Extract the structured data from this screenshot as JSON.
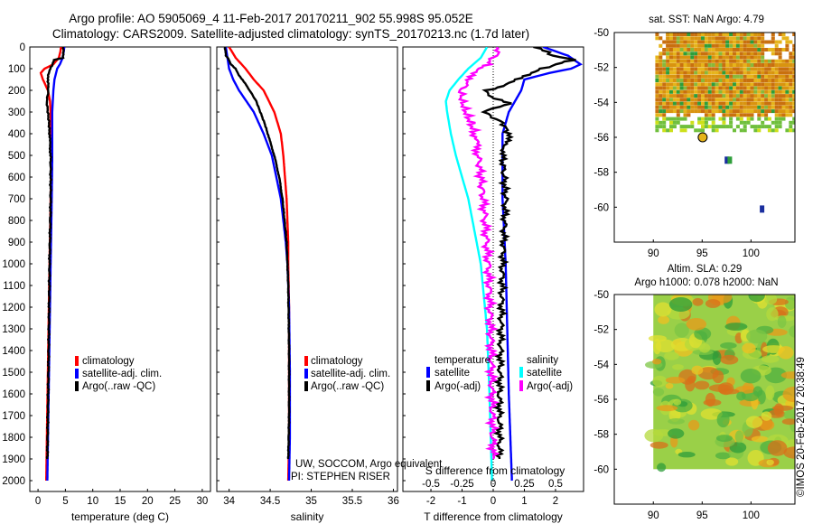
{
  "title": {
    "line1": "Argo profile: AO 5905069_4 11-Feb-2017 20170211_902 55.998S 95.052E",
    "line2": "Climatology: CARS2009. Satellite-adjusted climatology: synTS_20170213.nc (1.7d later)"
  },
  "colors": {
    "climatology": "#ff0000",
    "satellite": "#0000ff",
    "argo": "#000000",
    "sal_satellite": "#00ffff",
    "sal_argo": "#ff00ff"
  },
  "depth_axis": {
    "ylim": [
      2050,
      0
    ],
    "ticks": [
      0,
      100,
      200,
      300,
      400,
      500,
      600,
      700,
      800,
      900,
      1000,
      1100,
      1200,
      1300,
      1400,
      1500,
      1600,
      1700,
      1800,
      1900,
      2000
    ],
    "tick_labels": [
      "0",
      "100",
      "200",
      "300",
      "400",
      "500",
      "600",
      "700",
      "800",
      "900",
      "1000",
      "1100",
      "1200",
      "1300",
      "1400",
      "1500",
      "1600",
      "1700",
      "1800",
      "1900",
      "2000"
    ]
  },
  "chart_data": [
    {
      "id": "temperature-panel",
      "type": "line",
      "xlabel": "temperature (deg C)",
      "xlim": [
        -1.5,
        31.5
      ],
      "xticks": [
        0,
        5,
        10,
        15,
        20,
        25,
        30
      ],
      "xtick_labels": [
        "0",
        "5",
        "10",
        "15",
        "20",
        "25",
        "30"
      ],
      "legend": [
        "climatology",
        "satellite-adj. clim.",
        "Argo(..raw -QC)"
      ],
      "series": [
        {
          "name": "climatology",
          "depth": [
            0,
            20,
            50,
            80,
            100,
            120,
            150,
            200,
            250,
            300,
            400,
            500,
            700,
            1000,
            1500,
            2000
          ],
          "values": [
            4.2,
            4.1,
            3.8,
            2.8,
            1.2,
            0.5,
            0.9,
            1.8,
            2.2,
            2.3,
            2.4,
            2.4,
            2.3,
            2.1,
            1.8,
            1.5
          ]
        },
        {
          "name": "satellite-adj. clim.",
          "depth": [
            0,
            20,
            50,
            80,
            100,
            150,
            200,
            300,
            400,
            500,
            700,
            1000,
            1500,
            2000
          ],
          "values": [
            4.8,
            4.7,
            4.5,
            4.0,
            3.5,
            3.0,
            2.8,
            2.6,
            2.6,
            2.6,
            2.5,
            2.3,
            2.0,
            1.7
          ]
        },
        {
          "name": "Argo(..raw -QC)",
          "depth": [
            0,
            20,
            50,
            60,
            80,
            100,
            130,
            160,
            200,
            250,
            300,
            350,
            400,
            500,
            700,
            1000,
            1500,
            1900
          ],
          "values": [
            4.6,
            4.6,
            4.5,
            3.0,
            2.6,
            2.3,
            1.9,
            1.8,
            1.9,
            1.6,
            1.8,
            2.0,
            2.1,
            2.3,
            2.3,
            2.1,
            1.9,
            1.7
          ]
        }
      ]
    },
    {
      "id": "salinity-panel",
      "type": "line",
      "xlabel": "salinity",
      "xlim": [
        33.85,
        36.05
      ],
      "xticks": [
        34,
        34.5,
        35,
        35.5,
        36
      ],
      "xtick_labels": [
        "34",
        "34.5",
        "35",
        "35.5",
        "36"
      ],
      "legend": [
        "climatology",
        "satellite-adj. clim.",
        "Argo(..raw -QC)"
      ],
      "footer": [
        "UW, SOCCOM, Argo equivalent",
        "PI: STEPHEN RISER"
      ],
      "series": [
        {
          "name": "climatology",
          "depth": [
            0,
            50,
            100,
            150,
            200,
            300,
            400,
            500,
            700,
            900,
            1000,
            1200,
            1500,
            1800,
            2000
          ],
          "values": [
            34.0,
            34.08,
            34.2,
            34.3,
            34.42,
            34.55,
            34.63,
            34.66,
            34.7,
            34.72,
            34.72,
            34.73,
            34.73,
            34.73,
            34.72
          ]
        },
        {
          "name": "satellite-adj. clim.",
          "depth": [
            0,
            50,
            100,
            150,
            200,
            300,
            400,
            500,
            700,
            900,
            1000,
            1200,
            1500,
            1800,
            2000
          ],
          "values": [
            33.96,
            33.98,
            34.0,
            34.05,
            34.12,
            34.3,
            34.42,
            34.52,
            34.63,
            34.69,
            34.71,
            34.73,
            34.74,
            34.74,
            34.73
          ]
        },
        {
          "name": "Argo(..raw -QC)",
          "depth": [
            0,
            40,
            60,
            80,
            100,
            130,
            160,
            200,
            250,
            300,
            350,
            400,
            500,
            600,
            700,
            900,
            1100,
            1400,
            1700,
            1900
          ],
          "values": [
            33.95,
            33.96,
            34.0,
            34.02,
            34.08,
            34.12,
            34.18,
            34.25,
            34.33,
            34.38,
            34.43,
            34.47,
            34.55,
            34.61,
            34.65,
            34.7,
            34.72,
            34.73,
            34.73,
            34.72
          ]
        }
      ]
    },
    {
      "id": "difference-panel",
      "type": "line",
      "xlabel": "T difference from climatology",
      "xlabel2": "S difference from climatology",
      "xlim": [
        -2.9,
        2.9
      ],
      "xticks": [
        -2,
        -1,
        0,
        1,
        2
      ],
      "xtick_labels": [
        "-2",
        "-1",
        "0",
        "1",
        "2"
      ],
      "x2lim": [
        -0.725,
        0.725
      ],
      "x2ticks": [
        -0.5,
        -0.25,
        0,
        0.25,
        0.5
      ],
      "x2tick_labels": [
        "-0.5",
        "-0.25",
        "0",
        "0.25",
        "0.5"
      ],
      "legend_headers": [
        "temperature",
        "salinity"
      ],
      "legend_temperature": [
        "satellite",
        "Argo(-adj)"
      ],
      "legend_salinity": [
        "satellite",
        "Argo(-adj)"
      ],
      "series": [
        {
          "name": "T satellite",
          "depth": [
            0,
            40,
            80,
            100,
            120,
            150,
            200,
            250,
            300,
            400,
            500,
            700,
            1000,
            1300,
            1600,
            2000
          ],
          "values": [
            1.6,
            2.4,
            2.8,
            2.5,
            1.8,
            1.0,
            0.9,
            0.7,
            0.5,
            0.3,
            0.3,
            0.3,
            0.4,
            0.45,
            0.5,
            0.6
          ]
        },
        {
          "name": "T Argo(-adj)",
          "depth": [
            0,
            40,
            60,
            80,
            100,
            120,
            150,
            180,
            200,
            230,
            260,
            300,
            350,
            400,
            500,
            700,
            1000,
            1300,
            1600,
            1900
          ],
          "values": [
            1.4,
            1.9,
            2.6,
            2.0,
            1.6,
            1.2,
            0.7,
            0.3,
            -0.2,
            -0.1,
            0.5,
            -0.3,
            0.3,
            0.5,
            0.3,
            0.4,
            0.3,
            0.25,
            0.2,
            0.2
          ]
        },
        {
          "name": "S satellite",
          "depth": [
            0,
            50,
            100,
            150,
            200,
            250,
            300,
            400,
            500,
            700,
            1000,
            1300,
            1600,
            2000
          ],
          "values": [
            -0.05,
            -0.1,
            -0.2,
            -0.28,
            -0.35,
            -0.38,
            -0.37,
            -0.34,
            -0.3,
            -0.2,
            -0.1,
            -0.05,
            -0.03,
            -0.01
          ]
        },
        {
          "name": "S Argo(-adj)",
          "depth": [
            0,
            40,
            80,
            100,
            130,
            160,
            200,
            250,
            300,
            350,
            400,
            500,
            700,
            1000,
            1300,
            1600,
            1900
          ],
          "values": [
            0.05,
            0.02,
            -0.05,
            -0.1,
            -0.15,
            -0.2,
            -0.26,
            -0.25,
            -0.22,
            -0.18,
            -0.15,
            -0.12,
            -0.08,
            -0.04,
            -0.02,
            -0.01,
            0.0
          ]
        }
      ]
    },
    {
      "id": "sst-map",
      "type": "heatmap",
      "title": "sat. SST: NaN Argo: 4.79",
      "xlim": [
        86,
        104.5
      ],
      "ylim": [
        -62,
        -50
      ],
      "xticks": [
        90,
        95,
        100
      ],
      "xtick_labels": [
        "90",
        "95",
        "100"
      ],
      "yticks": [
        -50,
        -52,
        -54,
        -56,
        -58,
        -60
      ],
      "ytick_labels": [
        "-50",
        "-52",
        "-54",
        "-56",
        "-58",
        "-60"
      ],
      "marker": {
        "lon": 95.052,
        "lat": -55.998
      }
    },
    {
      "id": "sla-map",
      "type": "heatmap",
      "title_line1": "Altim. SLA: 0.29",
      "title_line2": "Argo h1000: 0.078 h2000: NaN",
      "xlim": [
        86,
        104.5
      ],
      "ylim": [
        -62,
        -50
      ],
      "xticks": [
        90,
        95,
        100
      ],
      "xtick_labels": [
        "90",
        "95",
        "100"
      ],
      "yticks": [
        -50,
        -52,
        -54,
        -56,
        -58,
        -60
      ],
      "ytick_labels": [
        "-50",
        "-52",
        "-54",
        "-56",
        "-58",
        "-60"
      ],
      "data_extent": {
        "lon": [
          90,
          104.5
        ],
        "lat": [
          -60,
          -50
        ]
      }
    }
  ],
  "credit": "©IMOS 20-Feb-2017 20:38:49"
}
